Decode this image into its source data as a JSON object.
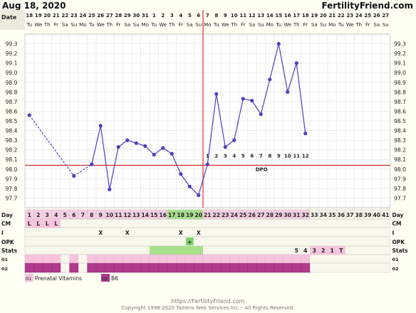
{
  "header": {
    "date": "Aug 18, 2020",
    "site": "FertilityFriend.com"
  },
  "row_labels": {
    "date": "Date",
    "day": "Day",
    "cm": "CM",
    "i": "I",
    "opk": "OPK",
    "stats": "Stats",
    "supp1": "01",
    "supp2": "02"
  },
  "legend": {
    "code1": "01",
    "item1": "Prenatal Vitamins",
    "code2": "02",
    "item2": "B6"
  },
  "footer": {
    "url": "https://FertilityFriend.com",
    "copyright": "Copyright 1998-2020 Tamtris Web Services Inc. - All Rights Reserved."
  },
  "chart_data": {
    "type": "line",
    "ylim": [
      97.6,
      99.4
    ],
    "y_ticks": [
      "97.7",
      "97.8",
      "97.9",
      "98.0",
      "98.1",
      "98.2",
      "98.3",
      "98.4",
      "98.5",
      "98.6",
      "98.7",
      "98.8",
      "98.9",
      "99.0",
      "99.1",
      "99.2",
      "99.3"
    ],
    "dates": [
      "18",
      "19",
      "20",
      "21",
      "22",
      "23",
      "24",
      "25",
      "26",
      "27",
      "28",
      "29",
      "30",
      "31",
      "1",
      "2",
      "3",
      "4",
      "5",
      "6",
      "7",
      "8",
      "9",
      "10",
      "11",
      "12",
      "13",
      "14",
      "15",
      "16",
      "17",
      "18",
      "19",
      "20",
      "21",
      "22",
      "23",
      "24",
      "25",
      "26",
      "27"
    ],
    "weekdays": [
      "Tu",
      "We",
      "Th",
      "Fr",
      "Sa",
      "Su",
      "Mo",
      "Tu",
      "We",
      "Th",
      "Fr",
      "Sa",
      "Su",
      "Mo",
      "Tu",
      "We",
      "Th",
      "Fr",
      "Sa",
      "Su",
      "Mo",
      "Tu",
      "We",
      "Th",
      "Fr",
      "Sa",
      "Su",
      "Mo",
      "Tu",
      "We",
      "Th",
      "Fr",
      "Sa",
      "Su",
      "Mo",
      "Tu",
      "We",
      "Th",
      "Fr",
      "Sa",
      "Su"
    ],
    "days": [
      "1",
      "2",
      "3",
      "4",
      "5",
      "6",
      "7",
      "8",
      "9",
      "10",
      "11",
      "12",
      "13",
      "14",
      "15",
      "16",
      "17",
      "18",
      "19",
      "20",
      "21",
      "22",
      "23",
      "24",
      "25",
      "26",
      "27",
      "28",
      "29",
      "30",
      "31",
      "32",
      "33",
      "34",
      "35",
      "36",
      "37",
      "38",
      "39",
      "40",
      "41"
    ],
    "temps": [
      98.56,
      null,
      null,
      null,
      null,
      97.93,
      null,
      98.05,
      98.45,
      97.79,
      98.23,
      98.3,
      98.27,
      98.24,
      98.15,
      98.22,
      98.16,
      97.95,
      97.82,
      97.73,
      98.05,
      98.78,
      98.23,
      98.3,
      98.73,
      98.71,
      98.57,
      98.93,
      99.3,
      98.8,
      99.1,
      98.37
    ],
    "coverline": 98.04,
    "ovulation_day": 20,
    "dpo_label": "DPO",
    "dpo_numbers": [
      "1",
      "2",
      "3",
      "4",
      "5",
      "6",
      "7",
      "8",
      "9",
      "10",
      "11",
      "12"
    ],
    "cm": {
      "1": "L",
      "2": "L",
      "3": "L",
      "4": "L"
    },
    "intercourse": {
      "9": "X",
      "12": "X",
      "18": "X",
      "20": "X"
    },
    "opk": {
      "19": "+"
    },
    "stats": {
      "31": "5",
      "32": "4",
      "33": "3",
      "34": "2",
      "35": "1",
      "36": "T"
    }
  }
}
